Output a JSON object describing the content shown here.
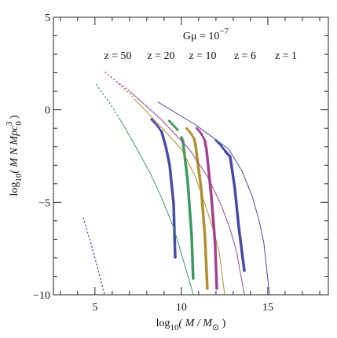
{
  "chart_data": {
    "type": "line",
    "title": "Gμ = 10",
    "title_exponent": "−7",
    "xlabel": [
      "log",
      "10",
      "( M / M",
      "⊙",
      " )"
    ],
    "ylabel": [
      "log",
      "10",
      "( M N Mpc",
      "0",
      "3",
      " )"
    ],
    "xlim": [
      2.6,
      18.5
    ],
    "ylim": [
      -10,
      5
    ],
    "xticks": [
      5,
      10,
      15
    ],
    "yticks": [
      {
        "value": -10,
        "label": "−10"
      },
      {
        "value": -5,
        "label": "−5"
      },
      0,
      5
    ],
    "xminorticks": [
      3,
      4,
      6,
      7,
      8,
      9,
      11,
      12,
      13,
      14,
      16,
      17,
      18
    ],
    "yminorticks": [
      -9,
      -8,
      -7,
      -6,
      -4,
      -3,
      -2,
      -1,
      1,
      2,
      3,
      4
    ],
    "series": [
      {
        "name": "z = 50",
        "color": "#4b4ba8",
        "thin_dotted": {
          "x": [
            4.32,
            4.8,
            5.2,
            5.55
          ],
          "values": [
            -5.85,
            -7.3,
            -8.7,
            -9.96
          ]
        },
        "thick_dotted": {
          "x": [
            8.27,
            8.6,
            8.86
          ],
          "values": [
            -0.51,
            -0.85,
            -1.19
          ]
        },
        "thick": {
          "x": [
            8.86,
            9.1,
            9.32,
            9.55,
            9.64
          ],
          "values": [
            -1.19,
            -2.0,
            -2.97,
            -5.08,
            -7.97
          ]
        }
      },
      {
        "name": "z = 20",
        "color": "#3c9a5e",
        "thin_dotted": {
          "x": [
            5.09,
            5.8,
            6.45
          ],
          "values": [
            1.36,
            0.45,
            -0.51
          ]
        },
        "thin": {
          "x": [
            6.45,
            7.3,
            8.18,
            8.9,
            9.55,
            10.1,
            10.68
          ],
          "values": [
            -0.51,
            -1.9,
            -3.39,
            -4.85,
            -6.36,
            -8.1,
            -9.96
          ]
        },
        "thick_dotted": {
          "x": [
            9.3,
            9.55,
            9.8
          ],
          "values": [
            -0.6,
            -0.85,
            -1.1
          ]
        },
        "thick": {
          "x": [
            10.0,
            10.09,
            10.36,
            10.59,
            10.68
          ],
          "values": [
            -1.5,
            -1.69,
            -3.81,
            -6.78,
            -9.11
          ]
        }
      },
      {
        "name": "z = 10",
        "color": "#b0902e",
        "thin_dotted": {
          "x": [
            6.36,
            6.9,
            7.36
          ],
          "values": [
            1.4,
            0.95,
            0.51
          ]
        },
        "thin": {
          "x": [
            7.36,
            8.7,
            10.0,
            10.8,
            11.36,
            11.85,
            12.18,
            12.5
          ],
          "values": [
            0.51,
            -0.8,
            -2.12,
            -3.6,
            -5.08,
            -6.5,
            -7.63,
            -9.96
          ]
        },
        "thick_dotted": {
          "x": [
            10.3,
            10.55,
            10.75
          ],
          "values": [
            -1.0,
            -1.27,
            -1.6
          ]
        },
        "thick": {
          "x": [
            10.75,
            10.82,
            11.14,
            11.36,
            11.5
          ],
          "values": [
            -1.6,
            -1.91,
            -4.24,
            -6.78,
            -9.66
          ]
        }
      },
      {
        "name": "z = 6",
        "color": "#a3418f",
        "thin_dotted": {
          "x": [
            5.59,
            6.3,
            7.05
          ],
          "values": [
            2.03,
            1.5,
            0.97
          ]
        },
        "thin": {
          "x": [
            7.05,
            8.8,
            10.45,
            11.5,
            12.27,
            12.8,
            13.18,
            13.64
          ],
          "values": [
            0.97,
            -0.5,
            -2.12,
            -3.6,
            -5.08,
            -6.4,
            -7.63,
            -9.96
          ]
        },
        "thick_dotted": {
          "x": [
            10.9,
            11.14,
            11.35
          ],
          "values": [
            -1.0,
            -1.27,
            -1.65
          ]
        },
        "thick": {
          "x": [
            11.35,
            11.45,
            11.73,
            11.95,
            12.05
          ],
          "values": [
            -1.65,
            -2.12,
            -4.66,
            -7.2,
            -9.66
          ]
        }
      },
      {
        "name": "z = 1",
        "color": "#4848a8",
        "thin": {
          "x": [
            8.64,
            10.8,
            12.73,
            13.5,
            14.09,
            14.5,
            14.77,
            15.09
          ],
          "values": [
            0.42,
            -0.8,
            -2.12,
            -3.3,
            -4.66,
            -6.0,
            -7.2,
            -9.96
          ]
        },
        "thick_dotted": {
          "x": [
            12.0,
            12.27,
            12.55
          ],
          "values": [
            -1.65,
            -1.91,
            -2.25
          ]
        },
        "thick": {
          "x": [
            12.55,
            12.82,
            13.09,
            13.32,
            13.64
          ],
          "values": [
            -2.25,
            -2.54,
            -4.24,
            -6.36,
            -8.69
          ]
        }
      }
    ]
  }
}
